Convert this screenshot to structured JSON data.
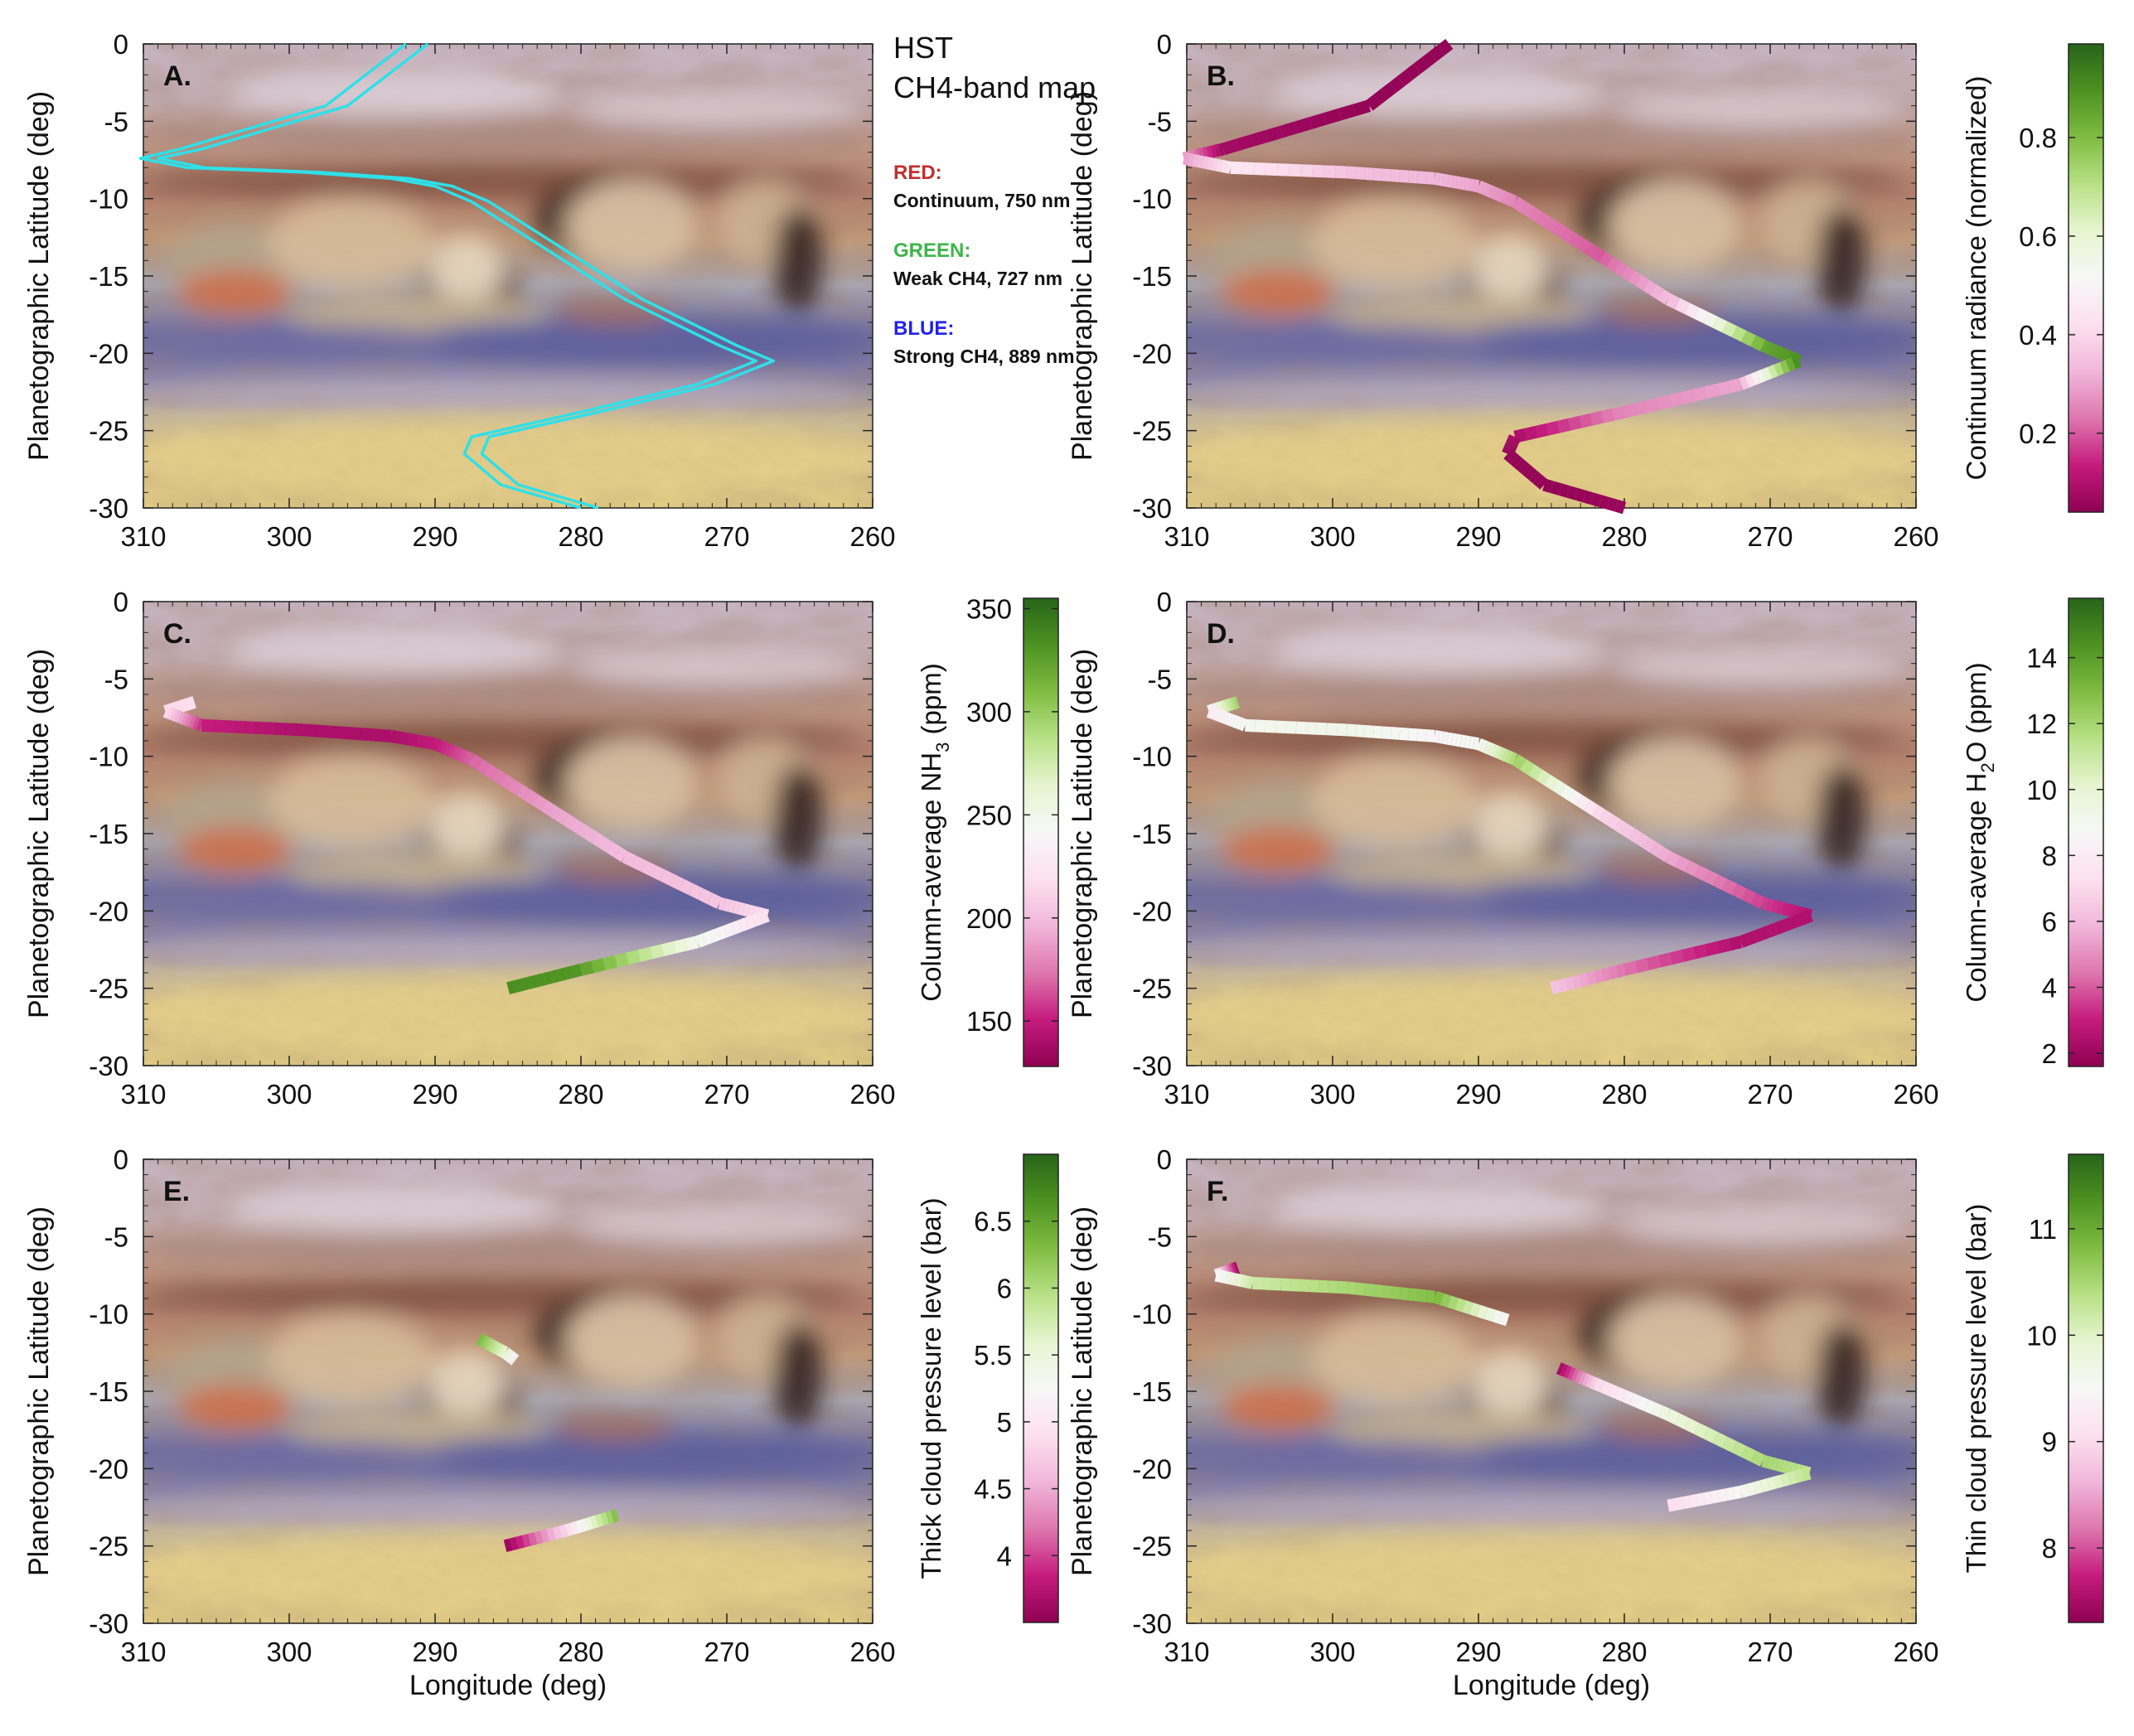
{
  "x_ticks": [
    "310",
    "300",
    "290",
    "280",
    "270",
    "260"
  ],
  "y_ticks": [
    "0",
    "-5",
    "-10",
    "-15",
    "-20",
    "-25",
    "-30"
  ],
  "y_axis_label": "Planetographic Latitude (deg)",
  "x_axis_label": "Longitude (deg)",
  "legend": {
    "title_line1": "HST",
    "title_line2": "CH4-band map",
    "red_label": "RED:",
    "red_desc": "Continuum, 750 nm",
    "green_label": "GREEN:",
    "green_desc": "Weak CH4, 727 nm",
    "blue_label": "BLUE:",
    "blue_desc": "Strong CH4, 889 nm",
    "red_color": "#c0302f",
    "green_color": "#3cb54a",
    "blue_color": "#2222ee"
  },
  "colormap": [
    "#8e0152",
    "#c51b7d",
    "#de77ae",
    "#f1b6da",
    "#fde0ef",
    "#f7f7f7",
    "#e6f5d0",
    "#b8e186",
    "#7fbc41",
    "#4d9221",
    "#276419"
  ],
  "chart_data": [
    {
      "id": "A",
      "panel_label": "A.",
      "type": "line",
      "xlim": [
        310,
        260
      ],
      "ylim": [
        -30,
        0
      ],
      "series": [
        {
          "color": "#2fe0e8",
          "x": [
            292.0,
            297.5,
            307.5,
            310.2,
            307.0,
            299.0,
            293.0,
            290.0,
            287.5,
            282.0,
            277.0,
            270.5,
            268.0,
            272.0,
            280.0,
            287.5,
            288.0,
            285.5,
            280.0
          ],
          "y": [
            0,
            -4,
            -6.8,
            -7.4,
            -8.0,
            -8.3,
            -8.7,
            -9.2,
            -10.2,
            -13.5,
            -16.5,
            -19.5,
            -20.5,
            -22.0,
            -23.8,
            -25.4,
            -26.5,
            -28.5,
            -30.0
          ]
        },
        {
          "color": "#2fe0e8",
          "x": [
            290.5,
            296.0,
            306.0,
            309.0,
            305.8,
            297.8,
            291.8,
            288.8,
            286.3,
            280.8,
            275.8,
            269.3,
            266.8,
            270.8,
            278.8,
            286.3,
            286.8,
            284.3,
            278.8
          ],
          "y": [
            0,
            -4,
            -6.8,
            -7.4,
            -8.0,
            -8.3,
            -8.7,
            -9.2,
            -10.2,
            -13.5,
            -16.5,
            -19.5,
            -20.5,
            -22.0,
            -23.8,
            -25.4,
            -26.5,
            -28.5,
            -30.0
          ]
        }
      ]
    },
    {
      "id": "B",
      "panel_label": "B.",
      "type": "line",
      "xlim": [
        310,
        260
      ],
      "ylim": [
        -30,
        0
      ],
      "colorbar": {
        "label": "Continuum radiance (normalized)",
        "ticks": [
          "0.8",
          "0.6",
          "0.4",
          "0.2"
        ],
        "tick_values": [
          0.8,
          0.6,
          0.4,
          0.2
        ],
        "range": [
          0.04,
          0.99
        ]
      },
      "track": {
        "x": [
          292.0,
          297.5,
          307.5,
          310.2,
          307.0,
          299.0,
          293.0,
          290.0,
          287.5,
          282.0,
          277.0,
          270.5,
          268.0,
          272.0,
          280.0,
          287.5,
          288.0,
          285.5,
          280.0
        ],
        "y": [
          0,
          -4,
          -6.8,
          -7.4,
          -8.0,
          -8.3,
          -8.7,
          -9.2,
          -10.2,
          -13.5,
          -16.5,
          -19.5,
          -20.5,
          -22.0,
          -23.8,
          -25.4,
          -26.5,
          -28.5,
          -30.0
        ],
        "values": [
          0.05,
          0.05,
          0.08,
          0.3,
          0.45,
          0.35,
          0.33,
          0.3,
          0.25,
          0.2,
          0.35,
          0.85,
          0.9,
          0.3,
          0.25,
          0.08,
          0.05,
          0.05,
          0.06
        ]
      }
    },
    {
      "id": "C",
      "panel_label": "C.",
      "type": "line",
      "xlim": [
        310,
        260
      ],
      "ylim": [
        -30,
        0
      ],
      "colorbar": {
        "label": "Column-average NH",
        "label_sub": "3",
        "label_tail": " (ppm)",
        "ticks": [
          "350",
          "300",
          "250",
          "200",
          "150"
        ],
        "tick_values": [
          350,
          300,
          250,
          200,
          150
        ],
        "range": [
          128,
          355
        ]
      },
      "track": {
        "x": [
          306.5,
          308.5,
          306.0,
          299.0,
          293.0,
          290.0,
          287.5,
          282.0,
          277.0,
          270.5,
          267.2,
          272.0,
          280.0,
          285.0
        ],
        "y": [
          -6.5,
          -7.1,
          -8.0,
          -8.3,
          -8.7,
          -9.2,
          -10.2,
          -13.5,
          -16.5,
          -19.5,
          -20.3,
          -22.0,
          -23.8,
          -25.0
        ],
        "values": [
          220,
          215,
          150,
          140,
          140,
          150,
          170,
          190,
          200,
          205,
          220,
          250,
          330,
          335
        ]
      }
    },
    {
      "id": "D",
      "panel_label": "D.",
      "type": "line",
      "xlim": [
        310,
        260
      ],
      "ylim": [
        -30,
        0
      ],
      "colorbar": {
        "label": "Column-average H",
        "label_sub": "2",
        "label_tail": "O (ppm)",
        "ticks": [
          "14",
          "12",
          "10",
          "8",
          "6",
          "4",
          "2"
        ],
        "tick_values": [
          14,
          12,
          10,
          8,
          6,
          4,
          2
        ],
        "range": [
          1.6,
          15.8
        ]
      },
      "track": {
        "x": [
          306.5,
          308.5,
          306.0,
          299.0,
          293.0,
          290.0,
          287.5,
          282.0,
          277.0,
          270.5,
          267.2,
          272.0,
          280.0,
          285.0
        ],
        "y": [
          -6.5,
          -7.1,
          -8.0,
          -8.3,
          -8.7,
          -9.2,
          -10.2,
          -13.5,
          -16.5,
          -19.5,
          -20.3,
          -22.0,
          -23.8,
          -25.0
        ],
        "values": [
          12,
          8,
          9,
          9.2,
          8.5,
          9,
          12,
          7,
          5.5,
          3.5,
          2.5,
          2.5,
          4.5,
          6.5
        ]
      }
    },
    {
      "id": "E",
      "panel_label": "E.",
      "type": "line",
      "xlim": [
        310,
        260
      ],
      "ylim": [
        -30,
        0
      ],
      "colorbar": {
        "label": "Thick cloud pressure level (bar)",
        "ticks": [
          "6.5",
          "6",
          "5.5",
          "5",
          "4.5",
          "4"
        ],
        "tick_values": [
          6.5,
          6,
          5.5,
          5,
          4.5,
          4
        ],
        "range": [
          3.5,
          7.0
        ]
      },
      "track_segments": [
        {
          "x": [
            287.0,
            285.2,
            284.5
          ],
          "y": [
            -11.6,
            -12.5,
            -13.0
          ],
          "values": [
            6.3,
            5.5,
            5.1
          ]
        },
        {
          "x": [
            285.2,
            281.0,
            277.5
          ],
          "y": [
            -25.0,
            -24.0,
            -23.0
          ],
          "values": [
            3.6,
            4.9,
            6.4
          ]
        }
      ]
    },
    {
      "id": "F",
      "panel_label": "F.",
      "type": "line",
      "xlim": [
        310,
        260
      ],
      "ylim": [
        -30,
        0
      ],
      "colorbar": {
        "label": "Thin cloud pressure level (bar)",
        "ticks": [
          "11",
          "10",
          "9",
          "8"
        ],
        "tick_values": [
          11,
          10,
          9,
          8
        ],
        "range": [
          7.3,
          11.7
        ]
      },
      "track_segments": [
        {
          "x": [
            306.5,
            308.0,
            305.5,
            299.0,
            293.0,
            288.0
          ],
          "y": [
            -7.0,
            -7.5,
            -8.0,
            -8.3,
            -8.9,
            -10.4
          ],
          "values": [
            7.5,
            9.5,
            10.2,
            10.5,
            10.8,
            9.3
          ]
        },
        {
          "x": [
            284.5,
            282.0,
            277.0,
            270.5,
            267.3,
            272.0,
            277.0
          ],
          "y": [
            -13.5,
            -14.5,
            -16.5,
            -19.5,
            -20.3,
            -21.5,
            -22.4
          ],
          "values": [
            7.5,
            9.0,
            9.8,
            10.5,
            10.3,
            9.5,
            9.0
          ]
        }
      ]
    }
  ]
}
